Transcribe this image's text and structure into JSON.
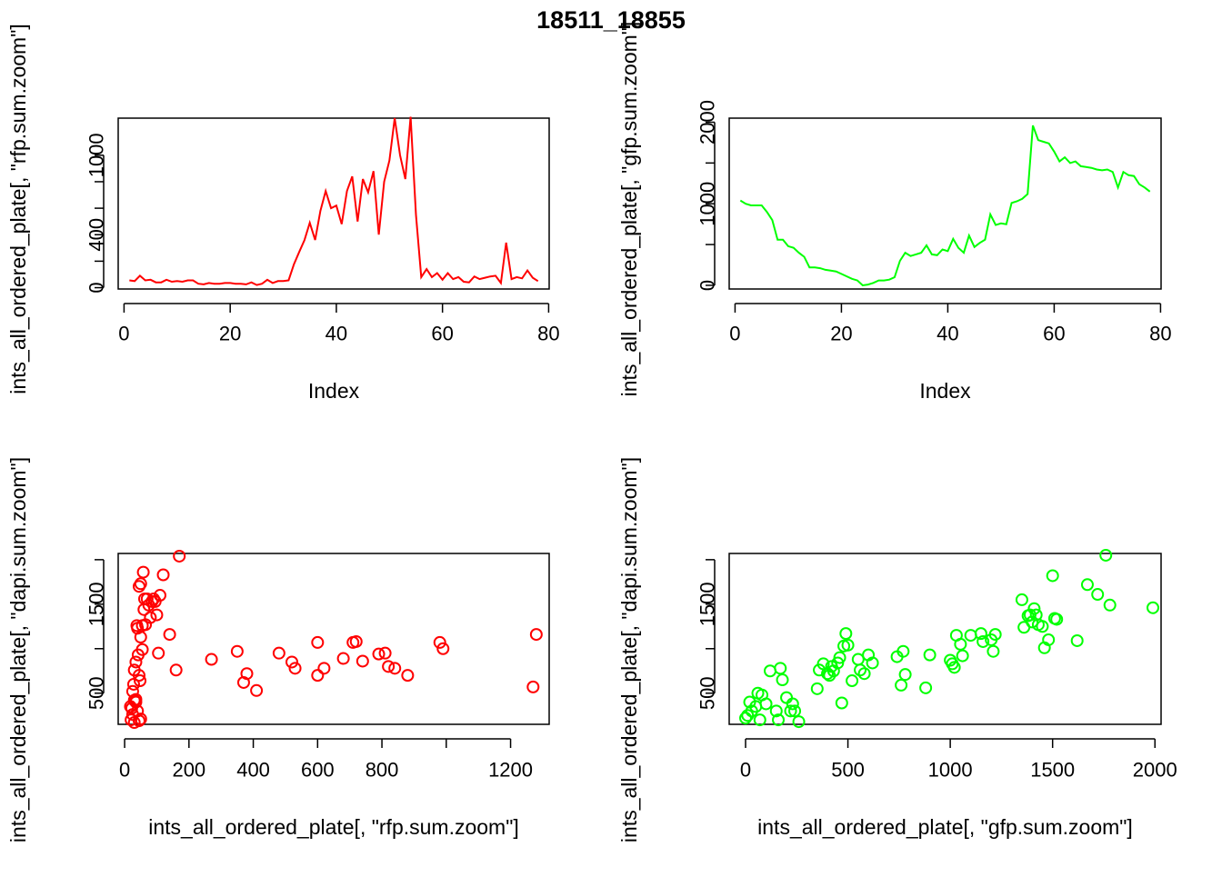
{
  "title": "18511_18855",
  "colors": {
    "red": "#ff0000",
    "green": "#00ff00",
    "axis": "#000000"
  },
  "chart_data": [
    {
      "type": "line",
      "title": "",
      "xlabel": "Index",
      "ylabel": "ints_all_ordered_plate[, \"rfp.sum.zoom\"]",
      "xlim": [
        -1.1,
        80.1
      ],
      "ylim": [
        -10,
        1280
      ],
      "xticks": [
        0,
        20,
        40,
        60,
        80
      ],
      "yticks": [
        0,
        400,
        1000
      ],
      "yticks_minor": [
        200,
        600,
        800
      ],
      "color": "#ff0000",
      "series": [
        {
          "x": [
            1,
            2,
            3,
            4,
            5,
            6,
            7,
            8,
            9,
            10,
            11,
            12,
            13,
            14,
            15,
            16,
            17,
            18,
            19,
            20,
            21,
            22,
            23,
            24,
            25,
            26,
            27,
            28,
            29,
            30,
            31,
            32,
            33,
            34,
            35,
            36,
            37,
            38,
            39,
            40,
            41,
            42,
            43,
            44,
            45,
            46,
            47,
            48,
            49,
            50,
            51,
            52,
            53,
            54,
            55,
            56,
            57,
            58,
            59,
            60,
            61,
            62,
            63,
            64,
            65,
            66,
            67,
            68,
            69,
            70,
            71,
            72,
            73,
            74,
            75,
            76,
            77,
            78
          ],
          "values": [
            55,
            50,
            90,
            55,
            60,
            40,
            40,
            60,
            45,
            50,
            45,
            55,
            55,
            30,
            25,
            35,
            30,
            30,
            35,
            35,
            30,
            30,
            25,
            40,
            20,
            30,
            60,
            35,
            50,
            50,
            55,
            175,
            270,
            360,
            490,
            360,
            580,
            730,
            600,
            620,
            480,
            730,
            840,
            500,
            820,
            720,
            880,
            400,
            800,
            960,
            1280,
            1000,
            820,
            1290,
            550,
            80,
            140,
            80,
            110,
            60,
            110,
            65,
            80,
            45,
            40,
            85,
            65,
            75,
            85,
            90,
            35,
            340,
            65,
            80,
            70,
            130,
            75,
            50
          ]
        }
      ]
    },
    {
      "type": "line",
      "title": "",
      "xlabel": "Index",
      "ylabel": "ints_all_ordered_plate[, \"gfp.sum.zoom\"]",
      "xlim": [
        -1.1,
        80.1
      ],
      "ylim": [
        -45,
        2050
      ],
      "xticks": [
        0,
        20,
        40,
        60,
        80
      ],
      "yticks": [
        0,
        1000,
        2000
      ],
      "yticks_minor": [
        500,
        1500
      ],
      "color": "#00ff00",
      "series": [
        {
          "x": [
            1,
            2,
            3,
            4,
            5,
            6,
            7,
            8,
            9,
            10,
            11,
            12,
            13,
            14,
            15,
            16,
            17,
            18,
            19,
            20,
            21,
            22,
            23,
            24,
            25,
            26,
            27,
            28,
            29,
            30,
            31,
            32,
            33,
            34,
            35,
            36,
            37,
            38,
            39,
            40,
            41,
            42,
            43,
            44,
            45,
            46,
            47,
            48,
            49,
            50,
            51,
            52,
            53,
            54,
            55,
            56,
            57,
            58,
            59,
            60,
            61,
            62,
            63,
            64,
            65,
            66,
            67,
            68,
            69,
            70,
            71,
            72,
            73,
            74,
            75,
            76,
            77,
            78
          ],
          "values": [
            1040,
            1000,
            980,
            980,
            980,
            900,
            800,
            560,
            560,
            480,
            460,
            400,
            350,
            220,
            220,
            210,
            190,
            180,
            170,
            140,
            110,
            80,
            60,
            0,
            10,
            30,
            60,
            60,
            70,
            100,
            300,
            400,
            360,
            380,
            400,
            490,
            380,
            370,
            440,
            420,
            570,
            460,
            400,
            610,
            470,
            520,
            560,
            870,
            740,
            760,
            750,
            1010,
            1030,
            1060,
            1120,
            1960,
            1780,
            1760,
            1740,
            1640,
            1520,
            1570,
            1500,
            1520,
            1460,
            1450,
            1440,
            1420,
            1410,
            1420,
            1390,
            1200,
            1390,
            1350,
            1340,
            1240,
            1200,
            1150
          ]
        }
      ]
    },
    {
      "type": "scatter",
      "title": "",
      "xlabel": "ints_all_ordered_plate[, \"rfp.sum.zoom\"]",
      "ylabel": "ints_all_ordered_plate[, \"dapi.sum.zoom\"]",
      "xlim": [
        -20,
        1320
      ],
      "ylim": [
        150,
        2070
      ],
      "xticks": [
        0,
        200,
        400,
        600,
        800,
        1200
      ],
      "xticks_minor": [
        1000
      ],
      "yticks": [
        500,
        1500
      ],
      "yticks_minor": [
        1000,
        2000
      ],
      "color": "#ff0000",
      "series": [
        {
          "x": [
            20,
            25,
            22,
            30,
            18,
            28,
            35,
            40,
            30,
            25,
            45,
            40,
            38,
            50,
            48,
            55,
            42,
            35,
            60,
            55,
            65,
            50,
            45,
            58,
            62,
            70,
            75,
            80,
            85,
            90,
            95,
            100,
            110,
            105,
            120,
            140,
            160,
            170,
            270,
            350,
            370,
            380,
            410,
            480,
            520,
            530,
            600,
            600,
            620,
            680,
            710,
            720,
            740,
            790,
            810,
            820,
            840,
            880,
            980,
            990,
            1270,
            1280,
            50,
            45,
            30,
            35
          ],
          "values": [
            200,
            260,
            330,
            420,
            350,
            600,
            430,
            300,
            760,
            520,
            700,
            1230,
            1260,
            1130,
            640,
            990,
            930,
            850,
            1440,
            1260,
            1270,
            1730,
            1700,
            1860,
            1560,
            1560,
            1490,
            1350,
            1530,
            1560,
            1530,
            1380,
            1600,
            950,
            1830,
            1160,
            760,
            2040,
            880,
            970,
            620,
            720,
            530,
            950,
            850,
            780,
            700,
            1070,
            780,
            890,
            1070,
            1080,
            860,
            940,
            950,
            800,
            780,
            700,
            1070,
            1000,
            570,
            1160,
            210,
            190,
            170,
            400
          ]
        }
      ]
    },
    {
      "type": "scatter",
      "title": "",
      "xlabel": "ints_all_ordered_plate[, \"gfp.sum.zoom\"]",
      "ylabel": "ints_all_ordered_plate[, \"dapi.sum.zoom\"]",
      "xlim": [
        -80,
        2030
      ],
      "ylim": [
        150,
        2070
      ],
      "xticks": [
        0,
        500,
        1000,
        1500,
        2000
      ],
      "yticks": [
        500,
        1500
      ],
      "yticks_minor": [
        1000,
        2000
      ],
      "color": "#00ff00",
      "series": [
        {
          "x": [
            0,
            10,
            20,
            30,
            50,
            60,
            70,
            80,
            100,
            120,
            150,
            160,
            170,
            180,
            200,
            220,
            230,
            240,
            260,
            350,
            360,
            380,
            400,
            410,
            420,
            430,
            450,
            460,
            470,
            480,
            490,
            500,
            520,
            550,
            560,
            580,
            600,
            620,
            740,
            760,
            770,
            780,
            880,
            900,
            1000,
            1010,
            1020,
            1030,
            1050,
            1060,
            1100,
            1150,
            1160,
            1200,
            1210,
            1220,
            1350,
            1360,
            1380,
            1390,
            1400,
            1410,
            1420,
            1430,
            1450,
            1460,
            1480,
            1500,
            1510,
            1520,
            1620,
            1670,
            1720,
            1760,
            1780,
            1990
          ],
          "values": [
            220,
            250,
            400,
            300,
            350,
            500,
            200,
            480,
            380,
            750,
            300,
            200,
            780,
            650,
            450,
            300,
            380,
            300,
            180,
            550,
            760,
            830,
            720,
            700,
            800,
            750,
            840,
            900,
            390,
            1030,
            1170,
            1040,
            640,
            880,
            760,
            720,
            930,
            840,
            910,
            590,
            970,
            710,
            560,
            930,
            870,
            830,
            790,
            1150,
            1050,
            920,
            1150,
            1170,
            1080,
            1100,
            970,
            1160,
            1550,
            1240,
            1370,
            1380,
            1300,
            1450,
            1380,
            1270,
            1250,
            1010,
            1100,
            1820,
            1340,
            1330,
            1090,
            1720,
            1610,
            2050,
            1490,
            1460
          ]
        }
      ]
    }
  ]
}
